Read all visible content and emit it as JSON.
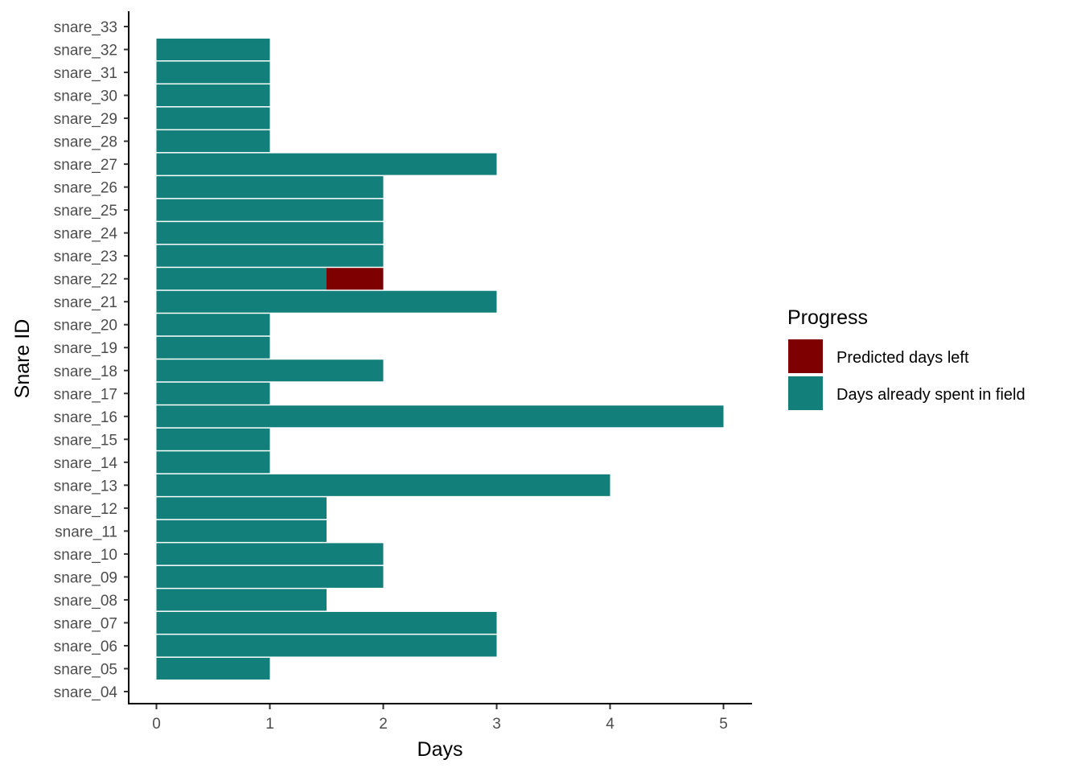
{
  "chart_data": {
    "type": "bar",
    "orientation": "horizontal",
    "stacked": true,
    "xlabel": "Days",
    "ylabel": "Snare ID",
    "xlim": [
      -0.25,
      5.25
    ],
    "xticks": [
      0,
      1,
      2,
      3,
      4,
      5
    ],
    "grid": false,
    "legend_position": "right",
    "categories": [
      "snare_04",
      "snare_05",
      "snare_06",
      "snare_07",
      "snare_08",
      "snare_09",
      "snare_10",
      "snare_11",
      "snare_12",
      "snare_13",
      "snare_14",
      "snare_15",
      "snare_16",
      "snare_17",
      "snare_18",
      "snare_19",
      "snare_20",
      "snare_21",
      "snare_22",
      "snare_23",
      "snare_24",
      "snare_25",
      "snare_26",
      "snare_27",
      "snare_28",
      "snare_29",
      "snare_30",
      "snare_31",
      "snare_32",
      "snare_33"
    ],
    "series": [
      {
        "name": "Days already spent in field",
        "color": "#127f7a",
        "values": [
          0,
          1,
          3,
          3,
          1.5,
          2,
          2,
          1.5,
          1.5,
          4,
          1,
          1,
          5,
          1,
          2,
          1,
          1,
          3,
          1.5,
          2,
          2,
          2,
          2,
          3,
          1,
          1,
          1,
          1,
          1,
          0
        ]
      },
      {
        "name": "Predicted days left",
        "color": "#7f0000",
        "values": [
          0,
          0,
          0,
          0,
          0,
          0,
          0,
          0,
          0,
          0,
          0,
          0,
          0,
          0,
          0,
          0,
          0,
          0,
          0.5,
          0,
          0,
          0,
          0,
          0,
          0,
          0,
          0,
          0,
          0,
          0
        ]
      }
    ],
    "legend": {
      "title": "Progress",
      "entries": [
        {
          "label": "Predicted days left",
          "color": "#7f0000"
        },
        {
          "label": "Days already spent in field",
          "color": "#127f7a"
        }
      ]
    }
  }
}
